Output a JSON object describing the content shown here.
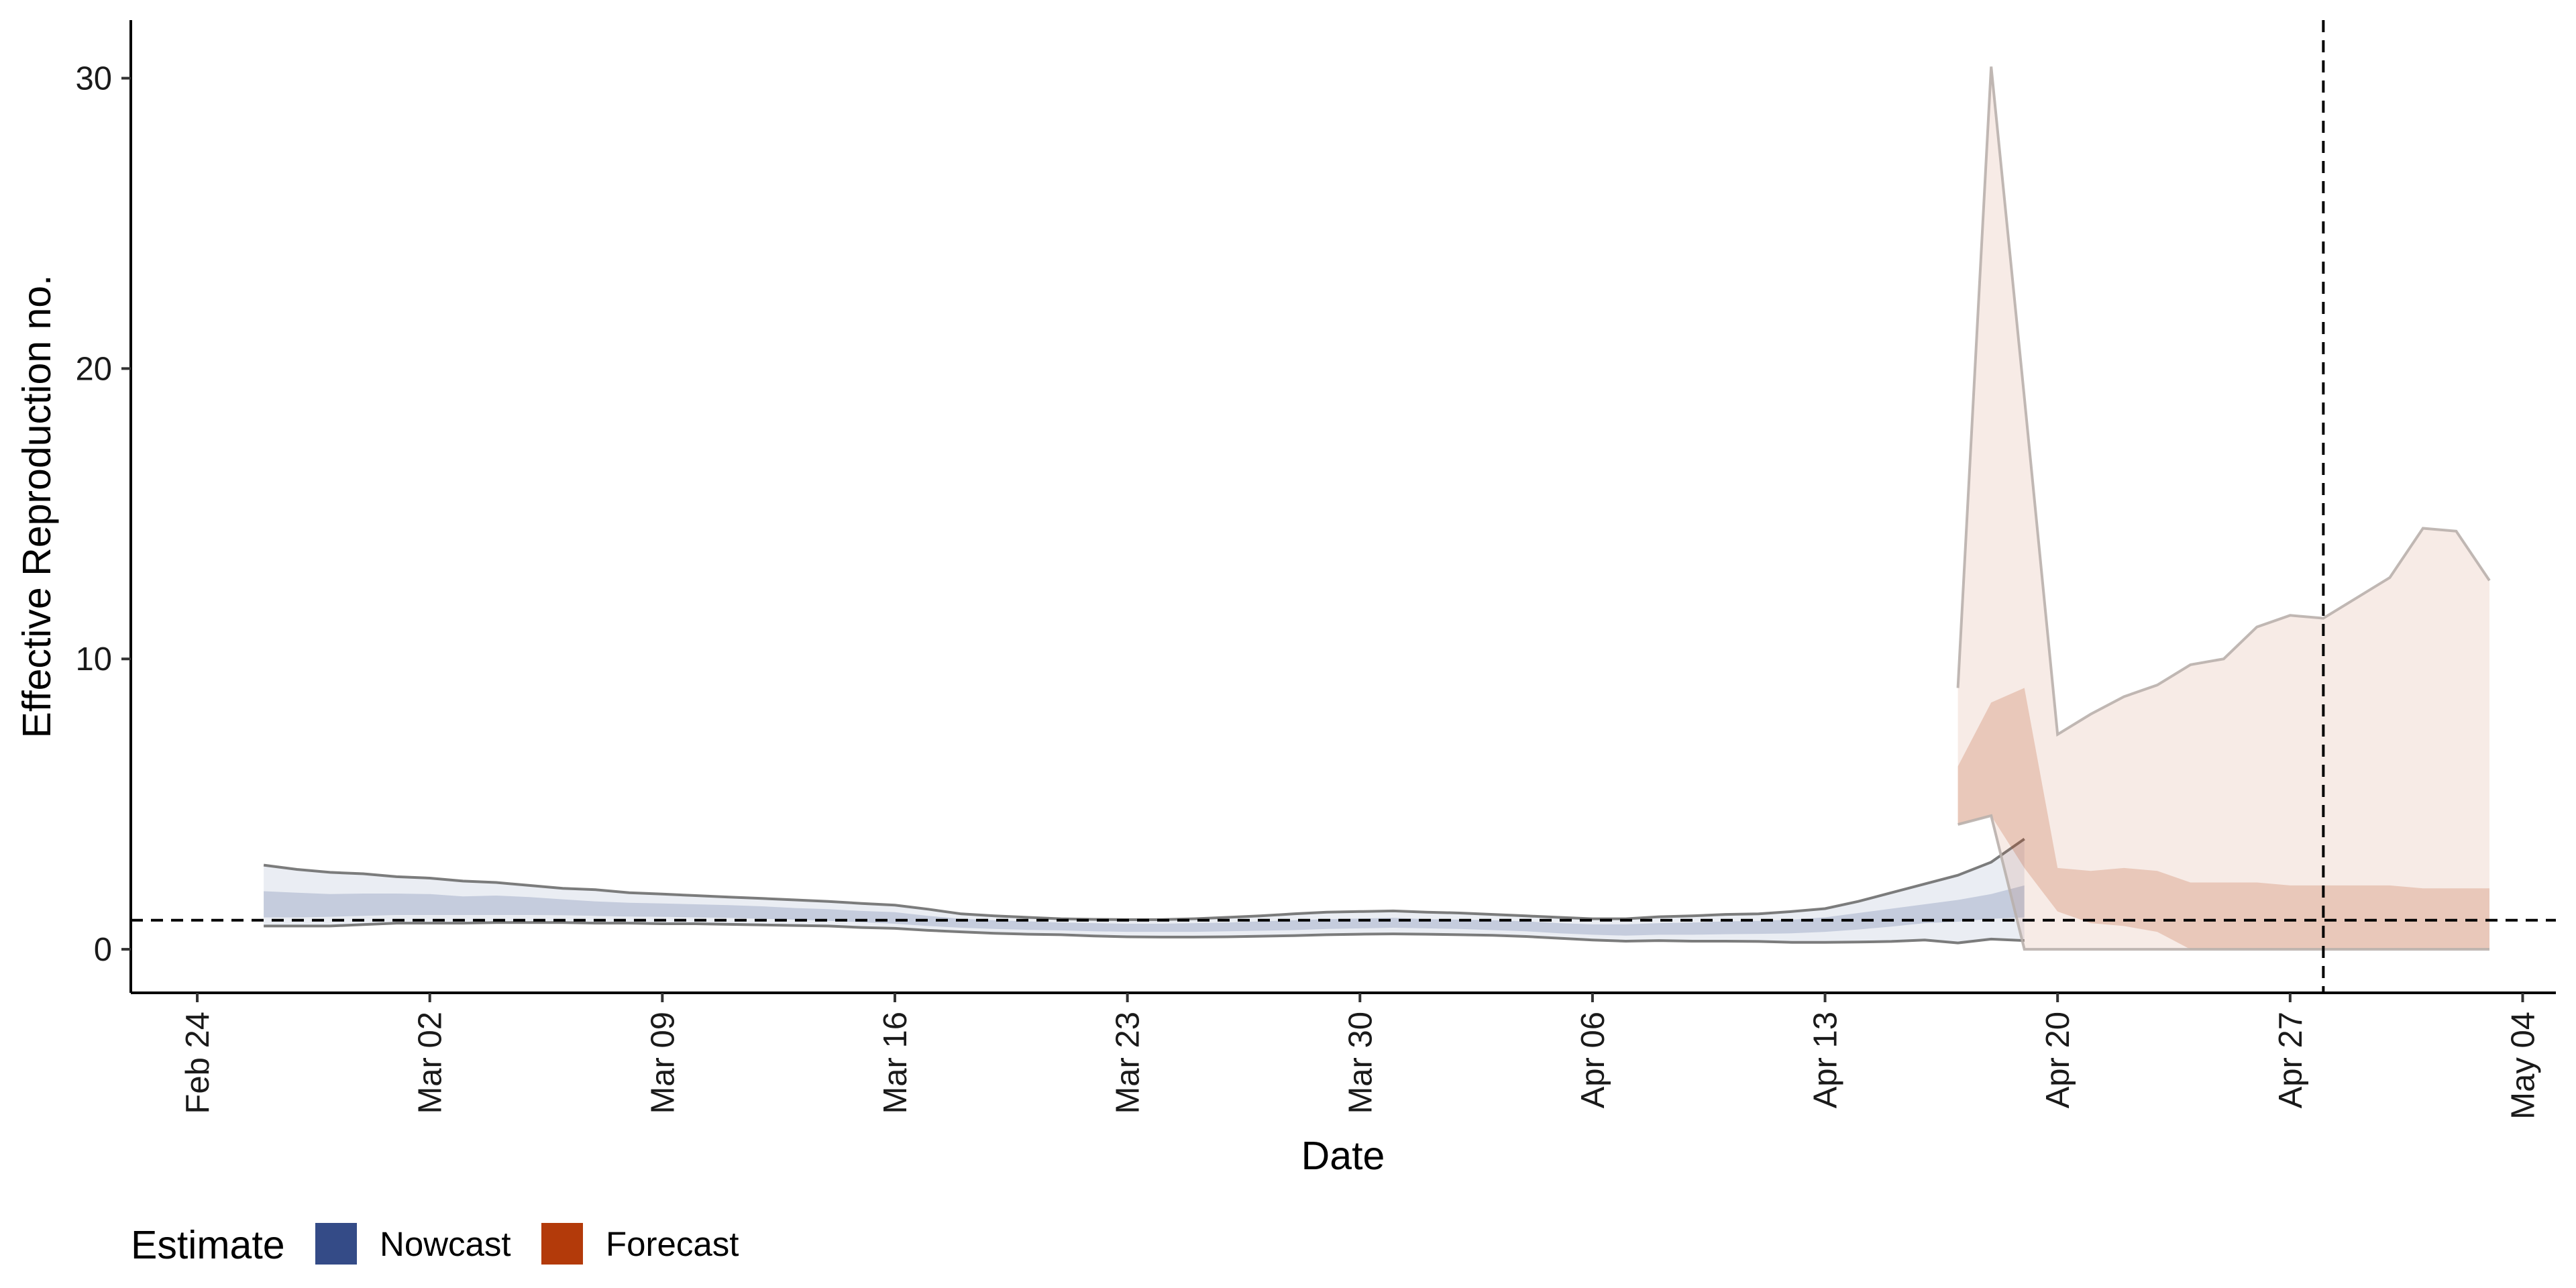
{
  "chart_data": {
    "type": "area",
    "xlabel": "Date",
    "ylabel": "Effective Reproduction no.",
    "x_range": [
      "2020-02-22",
      "2020-05-05"
    ],
    "ylim": [
      -1.5,
      32
    ],
    "y_ticks": [
      0,
      10,
      20,
      30
    ],
    "x_ticks": [
      {
        "date": "2020-02-24",
        "label": "Feb 24"
      },
      {
        "date": "2020-03-02",
        "label": "Mar 02"
      },
      {
        "date": "2020-03-09",
        "label": "Mar 09"
      },
      {
        "date": "2020-03-16",
        "label": "Mar 16"
      },
      {
        "date": "2020-03-23",
        "label": "Mar 23"
      },
      {
        "date": "2020-03-30",
        "label": "Mar 30"
      },
      {
        "date": "2020-04-06",
        "label": "Apr 06"
      },
      {
        "date": "2020-04-13",
        "label": "Apr 13"
      },
      {
        "date": "2020-04-20",
        "label": "Apr 20"
      },
      {
        "date": "2020-04-27",
        "label": "Apr 27"
      },
      {
        "date": "2020-05-04",
        "label": "May 04"
      }
    ],
    "reference_lines": {
      "horizontal_y": 1,
      "vertical_date": "2020-04-28"
    },
    "grid": false,
    "legend": {
      "title": "Estimate",
      "position": "bottom-left",
      "entries": [
        {
          "name": "Nowcast",
          "color": "#344b87"
        },
        {
          "name": "Forecast",
          "color": "#b33a0a"
        }
      ]
    },
    "series": [
      {
        "name": "Nowcast",
        "color": "#344b87",
        "x": [
          "2020-02-26",
          "2020-02-27",
          "2020-02-28",
          "2020-02-29",
          "2020-03-01",
          "2020-03-02",
          "2020-03-03",
          "2020-03-04",
          "2020-03-05",
          "2020-03-06",
          "2020-03-07",
          "2020-03-08",
          "2020-03-09",
          "2020-03-10",
          "2020-03-11",
          "2020-03-12",
          "2020-03-13",
          "2020-03-14",
          "2020-03-15",
          "2020-03-16",
          "2020-03-17",
          "2020-03-18",
          "2020-03-19",
          "2020-03-20",
          "2020-03-21",
          "2020-03-22",
          "2020-03-23",
          "2020-03-24",
          "2020-03-25",
          "2020-03-26",
          "2020-03-27",
          "2020-03-28",
          "2020-03-29",
          "2020-03-30",
          "2020-03-31",
          "2020-04-01",
          "2020-04-02",
          "2020-04-03",
          "2020-04-04",
          "2020-04-05",
          "2020-04-06",
          "2020-04-07",
          "2020-04-08",
          "2020-04-09",
          "2020-04-10",
          "2020-04-11",
          "2020-04-12",
          "2020-04-13",
          "2020-04-14",
          "2020-04-15",
          "2020-04-16",
          "2020-04-17",
          "2020-04-18",
          "2020-04-19"
        ],
        "lower_90": [
          0.8,
          0.8,
          0.8,
          0.85,
          0.9,
          0.9,
          0.9,
          0.92,
          0.92,
          0.92,
          0.9,
          0.9,
          0.88,
          0.88,
          0.86,
          0.84,
          0.82,
          0.8,
          0.75,
          0.72,
          0.65,
          0.6,
          0.55,
          0.52,
          0.5,
          0.46,
          0.43,
          0.42,
          0.42,
          0.43,
          0.45,
          0.47,
          0.5,
          0.52,
          0.53,
          0.52,
          0.5,
          0.48,
          0.44,
          0.38,
          0.32,
          0.28,
          0.3,
          0.28,
          0.28,
          0.27,
          0.24,
          0.24,
          0.25,
          0.27,
          0.32,
          0.22,
          0.35,
          0.3
        ],
        "upper_90": [
          2.9,
          2.75,
          2.65,
          2.6,
          2.5,
          2.45,
          2.35,
          2.3,
          2.2,
          2.1,
          2.05,
          1.95,
          1.9,
          1.85,
          1.8,
          1.75,
          1.7,
          1.65,
          1.58,
          1.52,
          1.38,
          1.22,
          1.15,
          1.1,
          1.05,
          1.03,
          1.02,
          1.02,
          1.05,
          1.1,
          1.15,
          1.22,
          1.28,
          1.3,
          1.32,
          1.28,
          1.25,
          1.2,
          1.15,
          1.1,
          1.05,
          1.05,
          1.12,
          1.15,
          1.2,
          1.22,
          1.3,
          1.4,
          1.65,
          1.95,
          2.25,
          2.55,
          3.0,
          3.8
        ],
        "lower_50": [
          1.1,
          1.1,
          1.12,
          1.15,
          1.18,
          1.18,
          1.18,
          1.18,
          1.18,
          1.17,
          1.15,
          1.13,
          1.12,
          1.1,
          1.08,
          1.05,
          1.02,
          0.98,
          0.93,
          0.88,
          0.8,
          0.74,
          0.7,
          0.67,
          0.65,
          0.62,
          0.6,
          0.6,
          0.6,
          0.62,
          0.64,
          0.66,
          0.7,
          0.72,
          0.74,
          0.72,
          0.7,
          0.66,
          0.62,
          0.55,
          0.5,
          0.47,
          0.5,
          0.5,
          0.52,
          0.53,
          0.55,
          0.6,
          0.68,
          0.78,
          0.9,
          0.95,
          1.05,
          1.1
        ],
        "upper_50": [
          2.0,
          1.95,
          1.9,
          1.92,
          1.92,
          1.9,
          1.82,
          1.85,
          1.8,
          1.72,
          1.65,
          1.6,
          1.58,
          1.55,
          1.52,
          1.48,
          1.42,
          1.38,
          1.32,
          1.28,
          1.15,
          1.05,
          1.0,
          0.96,
          0.92,
          0.9,
          0.88,
          0.88,
          0.9,
          0.92,
          0.96,
          1.0,
          1.04,
          1.06,
          1.08,
          1.04,
          1.02,
          1.0,
          0.96,
          0.9,
          0.86,
          0.86,
          0.9,
          0.92,
          0.96,
          0.98,
          1.02,
          1.1,
          1.25,
          1.4,
          1.55,
          1.7,
          1.9,
          2.2
        ]
      },
      {
        "name": "Forecast",
        "color": "#b33a0a",
        "x": [
          "2020-04-17",
          "2020-04-18",
          "2020-04-19",
          "2020-04-20",
          "2020-04-21",
          "2020-04-22",
          "2020-04-23",
          "2020-04-24",
          "2020-04-25",
          "2020-04-26",
          "2020-04-27",
          "2020-04-28",
          "2020-04-29",
          "2020-04-30",
          "2020-05-01",
          "2020-05-02",
          "2020-05-03"
        ],
        "lower_90": [
          4.3,
          4.6,
          0.0,
          0.0,
          0.0,
          0.0,
          0.0,
          0.0,
          0.0,
          0.0,
          0.0,
          0.0,
          0.0,
          0.0,
          0.0,
          0.0,
          0.0
        ],
        "upper_90": [
          9.0,
          30.4,
          19.0,
          7.4,
          8.1,
          8.7,
          9.1,
          9.8,
          10.0,
          11.1,
          11.5,
          11.4,
          12.1,
          12.8,
          14.5,
          14.4,
          12.7
        ],
        "lower_50": [
          4.3,
          4.6,
          2.8,
          1.3,
          0.9,
          0.8,
          0.6,
          0.0,
          0.0,
          0.0,
          0.0,
          0.0,
          0.0,
          0.0,
          0.0,
          0.0,
          0.0
        ],
        "upper_50": [
          6.3,
          8.5,
          9.0,
          2.8,
          2.7,
          2.8,
          2.7,
          2.3,
          2.3,
          2.3,
          2.2,
          2.2,
          2.2,
          2.2,
          2.1,
          2.1,
          2.1
        ]
      }
    ]
  }
}
